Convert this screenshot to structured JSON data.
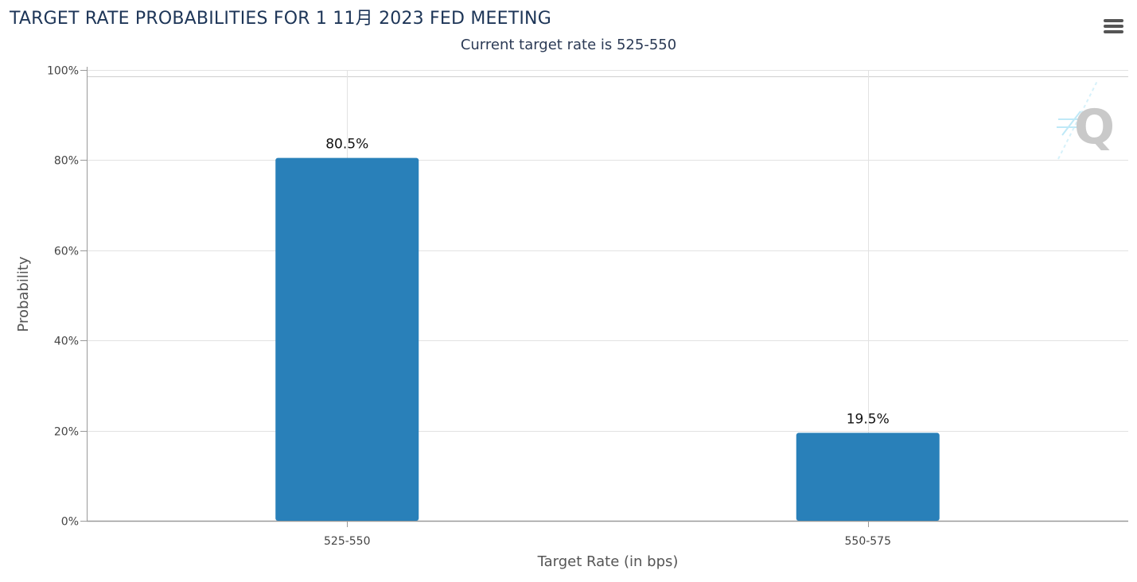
{
  "chart_data": {
    "type": "bar",
    "title": "TARGET RATE PROBABILITIES FOR 1 11月 2023 FED MEETING",
    "subtitle": "Current target rate is 525-550",
    "xlabel": "Target Rate (in bps)",
    "ylabel": "Probability",
    "categories": [
      "525-550",
      "550-575"
    ],
    "values": [
      80.5,
      19.5
    ],
    "data_labels": [
      "80.5%",
      "19.5%"
    ],
    "ylim": [
      0,
      100
    ],
    "yticks": [
      0,
      20,
      40,
      60,
      80,
      100
    ],
    "ytick_labels": [
      "0%",
      "20%",
      "40%",
      "60%",
      "80%",
      "100%"
    ],
    "grid": true,
    "legend": "none",
    "bar_color": "#2980b9",
    "watermark_text": "Q"
  }
}
